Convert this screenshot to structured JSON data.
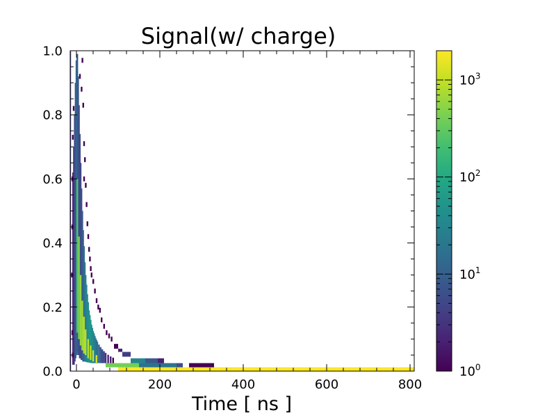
{
  "chart_data": {
    "type": "heatmap",
    "title": "Signal(w/ charge)",
    "xlabel": "Time [ ns ]",
    "ylabel": "",
    "xlim": [
      -15,
      810
    ],
    "ylim": [
      0,
      1.0
    ],
    "x_ticks": [
      0,
      200,
      400,
      600,
      800
    ],
    "y_ticks": [
      0.0,
      0.2,
      0.4,
      0.6,
      0.8,
      1.0
    ],
    "grid": false,
    "colorbar": {
      "scale": "log",
      "range": [
        1,
        2000
      ],
      "colormap": "viridis",
      "ticks": [
        {
          "base": "10",
          "exp": "0",
          "value": 1
        },
        {
          "base": "10",
          "exp": "1",
          "value": 10
        },
        {
          "base": "10",
          "exp": "2",
          "value": 100
        },
        {
          "base": "10",
          "exp": "3",
          "value": 1000
        }
      ]
    },
    "bins": [
      {
        "x0": 100,
        "x1": 810,
        "y0": 0.0,
        "y1": 0.012,
        "count": 2000
      },
      {
        "x0": 270,
        "x1": 330,
        "y0": 0.012,
        "y1": 0.025,
        "count": 1
      },
      {
        "x0": 150,
        "x1": 240,
        "y0": 0.012,
        "y1": 0.025,
        "count": 18
      },
      {
        "x0": 240,
        "x1": 255,
        "y0": 0.012,
        "y1": 0.025,
        "count": 6
      },
      {
        "x0": 70,
        "x1": 150,
        "y0": 0.012,
        "y1": 0.025,
        "count": 400
      },
      {
        "x0": 130,
        "x1": 165,
        "y0": 0.025,
        "y1": 0.04,
        "count": 30
      },
      {
        "x0": 165,
        "x1": 195,
        "y0": 0.025,
        "y1": 0.04,
        "count": 8
      },
      {
        "x0": 195,
        "x1": 210,
        "y0": 0.025,
        "y1": 0.04,
        "count": 2
      },
      {
        "x0": 110,
        "x1": 130,
        "y0": 0.045,
        "y1": 0.06,
        "count": 4
      },
      {
        "x0": 100,
        "x1": 110,
        "y0": 0.06,
        "y1": 0.07,
        "count": 2
      },
      {
        "x0": 90,
        "x1": 100,
        "y0": 0.07,
        "y1": 0.085,
        "count": 1
      }
    ],
    "ridge": [
      {
        "x": -8,
        "y0": 0.02,
        "y1": 0.62,
        "count": 2
      },
      {
        "x": -6,
        "y0": 0.02,
        "y1": 0.7,
        "count": 3
      },
      {
        "x": -4,
        "y0": 0.03,
        "y1": 0.8,
        "count": 5
      },
      {
        "x": -2,
        "y0": 0.04,
        "y1": 0.9,
        "count": 8
      },
      {
        "x": 0,
        "y0": 0.05,
        "y1": 0.97,
        "count": 12
      },
      {
        "x": 2,
        "y0": 0.06,
        "y1": 0.99,
        "count": 10
      },
      {
        "x": 4,
        "y0": 0.05,
        "y1": 0.92,
        "count": 8
      },
      {
        "x": 6,
        "y0": 0.05,
        "y1": 0.83,
        "count": 6
      },
      {
        "x": 8,
        "y0": 0.04,
        "y1": 0.74,
        "count": 5
      },
      {
        "x": 10,
        "y0": 0.04,
        "y1": 0.65,
        "count": 5
      },
      {
        "x": 12,
        "y0": 0.035,
        "y1": 0.57,
        "count": 6
      },
      {
        "x": 14,
        "y0": 0.035,
        "y1": 0.5,
        "count": 8
      },
      {
        "x": 16,
        "y0": 0.03,
        "y1": 0.44,
        "count": 10
      },
      {
        "x": 18,
        "y0": 0.03,
        "y1": 0.39,
        "count": 14
      },
      {
        "x": 20,
        "y0": 0.03,
        "y1": 0.34,
        "count": 18
      },
      {
        "x": 22,
        "y0": 0.03,
        "y1": 0.3,
        "count": 24
      },
      {
        "x": 24,
        "y0": 0.028,
        "y1": 0.27,
        "count": 30
      },
      {
        "x": 26,
        "y0": 0.028,
        "y1": 0.24,
        "count": 34
      },
      {
        "x": 28,
        "y0": 0.027,
        "y1": 0.215,
        "count": 40
      },
      {
        "x": 30,
        "y0": 0.027,
        "y1": 0.19,
        "count": 45
      },
      {
        "x": 32,
        "y0": 0.026,
        "y1": 0.175,
        "count": 50
      },
      {
        "x": 34,
        "y0": 0.026,
        "y1": 0.16,
        "count": 50
      },
      {
        "x": 36,
        "y0": 0.025,
        "y1": 0.145,
        "count": 45
      },
      {
        "x": 38,
        "y0": 0.025,
        "y1": 0.135,
        "count": 40
      },
      {
        "x": 40,
        "y0": 0.025,
        "y1": 0.125,
        "count": 35
      },
      {
        "x": 42,
        "y0": 0.025,
        "y1": 0.118,
        "count": 30
      },
      {
        "x": 44,
        "y0": 0.025,
        "y1": 0.11,
        "count": 25
      },
      {
        "x": 46,
        "y0": 0.025,
        "y1": 0.103,
        "count": 22
      },
      {
        "x": 48,
        "y0": 0.025,
        "y1": 0.097,
        "count": 18
      },
      {
        "x": 50,
        "y0": 0.025,
        "y1": 0.092,
        "count": 15
      },
      {
        "x": 54,
        "y0": 0.025,
        "y1": 0.083,
        "count": 12
      },
      {
        "x": 58,
        "y0": 0.025,
        "y1": 0.075,
        "count": 9
      },
      {
        "x": 62,
        "y0": 0.025,
        "y1": 0.068,
        "count": 6
      },
      {
        "x": 66,
        "y0": 0.025,
        "y1": 0.062,
        "count": 4
      },
      {
        "x": 70,
        "y0": 0.025,
        "y1": 0.057,
        "count": 3
      },
      {
        "x": 76,
        "y0": 0.025,
        "y1": 0.051,
        "count": 2
      },
      {
        "x": 82,
        "y0": 0.025,
        "y1": 0.046,
        "count": 2
      },
      {
        "x": 88,
        "y0": 0.025,
        "y1": 0.042,
        "count": 1
      }
    ],
    "ridge_width": 2,
    "core": [
      {
        "x": 2,
        "y0": 0.12,
        "y1": 0.6,
        "count": 250
      },
      {
        "x": 6,
        "y0": 0.1,
        "y1": 0.42,
        "count": 450
      },
      {
        "x": 10,
        "y0": 0.08,
        "y1": 0.3,
        "count": 600
      },
      {
        "x": 14,
        "y0": 0.065,
        "y1": 0.22,
        "count": 700
      },
      {
        "x": 18,
        "y0": 0.055,
        "y1": 0.17,
        "count": 800
      },
      {
        "x": 22,
        "y0": 0.05,
        "y1": 0.13,
        "count": 850
      },
      {
        "x": 28,
        "y0": 0.04,
        "y1": 0.1,
        "count": 900
      },
      {
        "x": 34,
        "y0": 0.035,
        "y1": 0.08,
        "count": 950
      },
      {
        "x": 40,
        "y0": 0.03,
        "y1": 0.065,
        "count": 1100
      },
      {
        "x": 48,
        "y0": 0.026,
        "y1": 0.05,
        "count": 1200
      }
    ],
    "core_width": 4,
    "left_edge": [
      {
        "x": -14,
        "y0": 0.0,
        "y1": 0.998,
        "count": 4
      }
    ],
    "left_edge_width": 2,
    "outliers": [
      {
        "x": -10,
        "y": 0.6
      },
      {
        "x": -10,
        "y": 0.45
      },
      {
        "x": -11,
        "y": 0.3
      },
      {
        "x": -10,
        "y": 0.12
      },
      {
        "x": -9,
        "y": 0.05
      },
      {
        "x": 14,
        "y": 0.97
      },
      {
        "x": 16,
        "y": 0.83
      },
      {
        "x": 18,
        "y": 0.71
      },
      {
        "x": 20,
        "y": 0.66
      },
      {
        "x": 22,
        "y": 0.58
      },
      {
        "x": 24,
        "y": 0.52
      },
      {
        "x": 26,
        "y": 0.46
      },
      {
        "x": 28,
        "y": 0.42
      },
      {
        "x": 30,
        "y": 0.38
      },
      {
        "x": 32,
        "y": 0.35
      },
      {
        "x": 34,
        "y": 0.32
      },
      {
        "x": 36,
        "y": 0.3
      },
      {
        "x": 40,
        "y": 0.28
      },
      {
        "x": 44,
        "y": 0.25
      },
      {
        "x": 48,
        "y": 0.22
      },
      {
        "x": 52,
        "y": 0.2
      },
      {
        "x": 56,
        "y": 0.19
      },
      {
        "x": 60,
        "y": 0.16
      },
      {
        "x": 66,
        "y": 0.14
      },
      {
        "x": 72,
        "y": 0.12
      },
      {
        "x": 78,
        "y": 0.11
      },
      {
        "x": 84,
        "y": 0.1
      },
      {
        "x": -7,
        "y": 0.82
      },
      {
        "x": -9,
        "y": 0.73
      },
      {
        "x": 8,
        "y": 0.92
      },
      {
        "x": 12,
        "y": 0.88
      },
      {
        "x": 18,
        "y": 0.6
      }
    ]
  }
}
